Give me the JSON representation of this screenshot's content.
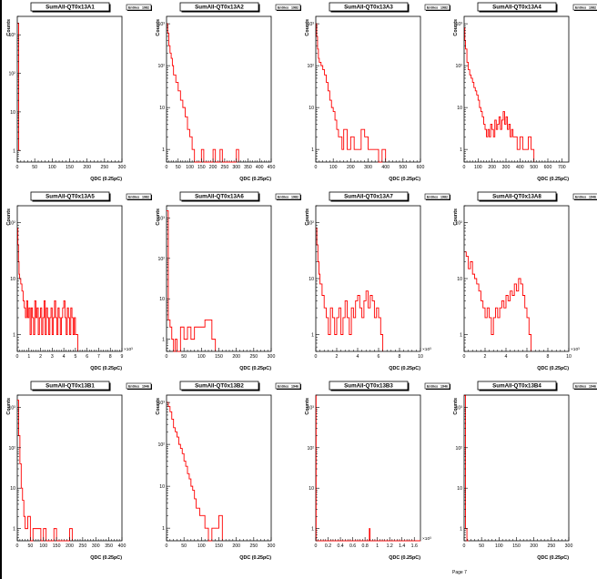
{
  "page": {
    "label": "Page 7"
  },
  "colors": {
    "series": "#ff0000",
    "axis": "#000000",
    "background": "#ffffff"
  },
  "chart_data": [
    {
      "type": "line",
      "title": "SumAll-QT0x13A1",
      "entries": "1982",
      "xlabel": "QDC (0.25pC)",
      "ylabel": "Counts",
      "log_y": true,
      "xlim": [
        0,
        300
      ],
      "ylim": [
        0.5,
        3000
      ],
      "xticks": [
        "0",
        "50",
        "100",
        "150",
        "200",
        "250",
        "300"
      ],
      "xtick_values": [
        0,
        50,
        100,
        150,
        200,
        250,
        300
      ],
      "yticks": [
        "1",
        "10",
        "10²",
        "10³"
      ],
      "ytick_values": [
        1,
        10,
        100,
        1000
      ],
      "x": [
        0,
        4,
        4,
        8
      ],
      "y": [
        1982,
        1982,
        1,
        1
      ]
    },
    {
      "type": "line",
      "title": "SumAll-QT0x13A2",
      "entries": "1982",
      "xlabel": "QDC (0.25pC)",
      "ylabel": "Counts",
      "log_y": true,
      "xlim": [
        0,
        450
      ],
      "ylim": [
        0.5,
        1500
      ],
      "xticks": [
        "0",
        "50",
        "100",
        "150",
        "200",
        "250",
        "300",
        "350",
        "400",
        "450"
      ],
      "xtick_values": [
        0,
        50,
        100,
        150,
        200,
        250,
        300,
        350,
        400,
        450
      ],
      "yticks": [
        "1",
        "10",
        "10²",
        "10³"
      ],
      "ytick_values": [
        1,
        10,
        100,
        1000
      ],
      "x": [
        0,
        5,
        10,
        15,
        20,
        25,
        30,
        40,
        50,
        60,
        70,
        80,
        90,
        100,
        110,
        120,
        150,
        160,
        200,
        210,
        230,
        240,
        300,
        310
      ],
      "y": [
        1000,
        600,
        300,
        200,
        150,
        100,
        60,
        40,
        25,
        15,
        10,
        6,
        3,
        2,
        1,
        0.5,
        1,
        0.5,
        1,
        0.5,
        1,
        0.5,
        1,
        0.5
      ]
    },
    {
      "type": "line",
      "title": "SumAll-QT0x13A3",
      "entries": "1982",
      "xlabel": "QDC (0.25pC)",
      "ylabel": "Counts",
      "log_y": true,
      "xlim": [
        0,
        600
      ],
      "ylim": [
        0.5,
        1500
      ],
      "xticks": [
        "0",
        "100",
        "200",
        "300",
        "400",
        "500",
        "600"
      ],
      "xtick_values": [
        0,
        100,
        200,
        300,
        400,
        500,
        600
      ],
      "yticks": [
        "1",
        "10",
        "10²",
        "10³"
      ],
      "ytick_values": [
        1,
        10,
        100,
        1000
      ],
      "x": [
        0,
        5,
        10,
        15,
        20,
        30,
        40,
        50,
        60,
        70,
        80,
        90,
        100,
        110,
        120,
        130,
        140,
        150,
        160,
        180,
        200,
        220,
        240,
        260,
        280,
        300,
        320,
        340,
        360,
        380,
        400
      ],
      "y": [
        1000,
        500,
        250,
        150,
        120,
        100,
        80,
        60,
        40,
        25,
        15,
        10,
        8,
        5,
        3,
        2,
        2,
        1,
        3,
        1,
        2,
        1,
        1,
        3,
        2,
        1,
        1,
        1,
        0.5,
        1,
        0.5
      ]
    },
    {
      "type": "line",
      "title": "SumAll-QT0x13A4",
      "entries": "1982",
      "xlabel": "QDC (0.25pC)",
      "ylabel": "Counts",
      "log_y": true,
      "xlim": [
        0,
        750
      ],
      "ylim": [
        0.5,
        1500
      ],
      "xticks": [
        "0",
        "100",
        "200",
        "300",
        "400",
        "500",
        "600",
        "700"
      ],
      "xtick_values": [
        0,
        100,
        200,
        300,
        400,
        500,
        600,
        700
      ],
      "yticks": [
        "1",
        "10",
        "10²",
        "10³"
      ],
      "ytick_values": [
        1,
        10,
        100,
        1000
      ],
      "x": [
        0,
        5,
        10,
        20,
        30,
        40,
        50,
        60,
        70,
        80,
        90,
        100,
        110,
        120,
        130,
        140,
        150,
        160,
        170,
        180,
        190,
        200,
        210,
        220,
        230,
        240,
        250,
        260,
        270,
        280,
        290,
        300,
        310,
        320,
        330,
        340,
        350,
        360,
        380,
        400,
        420,
        440,
        460,
        480,
        500
      ],
      "y": [
        800,
        400,
        250,
        120,
        80,
        60,
        50,
        40,
        30,
        25,
        20,
        15,
        10,
        8,
        6,
        4,
        3,
        2,
        3,
        2,
        4,
        3,
        2,
        5,
        3,
        4,
        6,
        3,
        5,
        8,
        4,
        6,
        3,
        4,
        2,
        3,
        2,
        2,
        1,
        2,
        1,
        1,
        2,
        1,
        0.5
      ]
    },
    {
      "type": "line",
      "title": "SumAll-QT0x13A5",
      "entries": "1982",
      "xlabel": "QDC (0.25pC)",
      "ylabel": "Counts",
      "log_y": true,
      "xlim": [
        0,
        9
      ],
      "ylim": [
        0.5,
        200
      ],
      "x_multiplier": "×10³",
      "xticks": [
        "0",
        "1",
        "2",
        "3",
        "4",
        "5",
        "6",
        "7",
        "8",
        "9"
      ],
      "xtick_values": [
        0,
        1,
        2,
        3,
        4,
        5,
        6,
        7,
        8,
        9
      ],
      "yticks": [
        "1",
        "10",
        "10²"
      ],
      "ytick_values": [
        1,
        10,
        100
      ],
      "x": [
        0,
        0.05,
        0.1,
        0.15,
        0.2,
        0.3,
        0.4,
        0.5,
        0.6,
        0.7,
        0.8,
        0.9,
        1.0,
        1.1,
        1.2,
        1.3,
        1.4,
        1.5,
        1.6,
        1.7,
        1.8,
        1.9,
        2.0,
        2.1,
        2.2,
        2.3,
        2.4,
        2.5,
        2.6,
        2.7,
        2.8,
        2.9,
        3.0,
        3.1,
        3.2,
        3.3,
        3.4,
        3.5,
        3.6,
        3.7,
        3.8,
        3.9,
        4.0,
        4.1,
        4.2,
        4.3,
        4.4,
        4.5,
        4.6,
        4.7,
        4.8,
        4.9,
        5.0,
        5.2
      ],
      "y": [
        80,
        40,
        20,
        12,
        10,
        8,
        6,
        4,
        3,
        2,
        4,
        2,
        3,
        1,
        3,
        2,
        1,
        4,
        2,
        3,
        1,
        2,
        3,
        1,
        2,
        4,
        1,
        3,
        2,
        1,
        2,
        3,
        1,
        2,
        4,
        2,
        1,
        3,
        2,
        1,
        2,
        3,
        4,
        2,
        1,
        3,
        2,
        1,
        3,
        2,
        1,
        2,
        1,
        0.5
      ]
    },
    {
      "type": "line",
      "title": "SumAll-QT0x13A6",
      "entries": "1982",
      "xlabel": "QDC (0.25pC)",
      "ylabel": "Counts",
      "log_y": true,
      "xlim": [
        0,
        300
      ],
      "ylim": [
        0.5,
        2000
      ],
      "xticks": [
        "0",
        "50",
        "100",
        "150",
        "200",
        "250",
        "300"
      ],
      "xtick_values": [
        0,
        50,
        100,
        150,
        200,
        250,
        300
      ],
      "yticks": [
        "1",
        "10",
        "10²",
        "10³"
      ],
      "ytick_values": [
        1,
        10,
        100,
        1000
      ],
      "x": [
        0,
        5,
        10,
        15,
        20,
        25,
        30,
        40,
        50,
        60,
        70,
        80,
        90,
        100,
        110,
        120,
        130,
        140
      ],
      "y": [
        1500,
        3,
        2,
        1,
        0.5,
        1,
        0.5,
        2,
        1,
        2,
        1,
        2,
        2,
        2,
        3,
        3,
        1,
        0.5
      ]
    },
    {
      "type": "line",
      "title": "SumAll-QT0x13A7",
      "entries": "1982",
      "xlabel": "QDC (0.25pC)",
      "ylabel": "Counts",
      "log_y": true,
      "xlim": [
        0,
        10
      ],
      "ylim": [
        0.5,
        200
      ],
      "x_multiplier": "×10³",
      "xticks": [
        "0",
        "2",
        "4",
        "6",
        "8",
        "10"
      ],
      "xtick_values": [
        0,
        2,
        4,
        6,
        8,
        10
      ],
      "yticks": [
        "1",
        "10",
        "10²"
      ],
      "ytick_values": [
        1,
        10,
        100
      ],
      "x": [
        0,
        0.1,
        0.2,
        0.3,
        0.4,
        0.6,
        0.8,
        1.0,
        1.2,
        1.4,
        1.6,
        1.8,
        2.0,
        2.2,
        2.4,
        2.6,
        2.8,
        3.0,
        3.2,
        3.4,
        3.6,
        3.8,
        4.0,
        4.2,
        4.4,
        4.6,
        4.8,
        5.0,
        5.2,
        5.4,
        5.6,
        5.8,
        6.0,
        6.2,
        6.4
      ],
      "y": [
        80,
        40,
        20,
        12,
        8,
        5,
        3,
        2,
        1,
        3,
        2,
        1,
        2,
        3,
        1,
        2,
        4,
        2,
        1,
        3,
        2,
        4,
        5,
        3,
        2,
        4,
        6,
        3,
        5,
        4,
        2,
        3,
        2,
        1,
        0.5
      ]
    },
    {
      "type": "line",
      "title": "SumAll-QT0x13A8",
      "entries": "1946",
      "xlabel": "QDC (0.25pC)",
      "ylabel": "Counts",
      "log_y": true,
      "xlim": [
        0,
        10
      ],
      "ylim": [
        0.5,
        200
      ],
      "x_multiplier": "×10³",
      "xticks": [
        "0",
        "2",
        "4",
        "6",
        "8",
        "10"
      ],
      "xtick_values": [
        0,
        2,
        4,
        6,
        8,
        10
      ],
      "yticks": [
        "1",
        "10",
        "10²"
      ],
      "ytick_values": [
        1,
        10,
        100
      ],
      "x": [
        0,
        0.2,
        0.4,
        0.6,
        0.8,
        1.0,
        1.2,
        1.4,
        1.6,
        1.8,
        2.0,
        2.2,
        2.4,
        2.6,
        2.8,
        3.0,
        3.2,
        3.4,
        3.6,
        3.8,
        4.0,
        4.2,
        4.4,
        4.6,
        4.8,
        5.0,
        5.2,
        5.4,
        5.6,
        5.8,
        6.0,
        6.2,
        6.4
      ],
      "y": [
        30,
        25,
        15,
        20,
        12,
        10,
        8,
        6,
        4,
        3,
        2,
        3,
        2,
        1,
        2,
        3,
        2,
        3,
        4,
        3,
        5,
        4,
        6,
        5,
        8,
        6,
        10,
        8,
        5,
        3,
        2,
        1,
        0.5
      ]
    },
    {
      "type": "line",
      "title": "SumAll-QT0x13B1",
      "entries": "1946",
      "xlabel": "QDC (0.25pC)",
      "ylabel": "Counts",
      "log_y": true,
      "xlim": [
        0,
        400
      ],
      "ylim": [
        0.5,
        2000
      ],
      "xticks": [
        "0",
        "50",
        "100",
        "150",
        "200",
        "250",
        "300",
        "350",
        "400"
      ],
      "xtick_values": [
        0,
        50,
        100,
        150,
        200,
        250,
        300,
        350,
        400
      ],
      "yticks": [
        "1",
        "10",
        "10²",
        "10³"
      ],
      "ytick_values": [
        1,
        10,
        100,
        1000
      ],
      "x": [
        0,
        5,
        10,
        15,
        20,
        25,
        30,
        40,
        50,
        60,
        80,
        90,
        100,
        110,
        140,
        150,
        200,
        210
      ],
      "y": [
        1500,
        200,
        40,
        10,
        5,
        2,
        1,
        2,
        0.5,
        1,
        1,
        0.5,
        1,
        0.5,
        1,
        0.5,
        1,
        0.5
      ]
    },
    {
      "type": "line",
      "title": "SumAll-QT0x13B2",
      "entries": "1946",
      "xlabel": "QDC (0.25pC)",
      "ylabel": "Counts",
      "log_y": true,
      "xlim": [
        0,
        300
      ],
      "ylim": [
        0.5,
        1500
      ],
      "xticks": [
        "0",
        "50",
        "100",
        "150",
        "200",
        "250",
        "300"
      ],
      "xtick_values": [
        0,
        50,
        100,
        150,
        200,
        250,
        300
      ],
      "yticks": [
        "1",
        "10",
        "10²",
        "10³"
      ],
      "ytick_values": [
        1,
        10,
        100,
        1000
      ],
      "x": [
        0,
        5,
        10,
        15,
        20,
        25,
        30,
        35,
        40,
        45,
        50,
        55,
        60,
        65,
        70,
        75,
        80,
        85,
        90,
        95,
        100,
        110,
        120,
        130,
        140,
        150,
        160
      ],
      "y": [
        1000,
        800,
        600,
        400,
        250,
        200,
        150,
        100,
        80,
        60,
        40,
        30,
        20,
        15,
        10,
        8,
        5,
        3,
        3,
        2,
        2,
        1,
        0.5,
        1,
        1,
        2,
        0.5
      ]
    },
    {
      "type": "line",
      "title": "SumAll-QT0x13B3",
      "entries": "1946",
      "xlabel": "QDC (0.25pC)",
      "ylabel": "Counts",
      "log_y": true,
      "xlim": [
        0,
        1.7
      ],
      "ylim": [
        0.5,
        2000
      ],
      "x_multiplier": "×10³",
      "xticks": [
        "0",
        "0.2",
        "0.4",
        "0.6",
        "0.8",
        "1",
        "1.2",
        "1.4",
        "1.6"
      ],
      "xtick_values": [
        0,
        0.2,
        0.4,
        0.6,
        0.8,
        1,
        1.2,
        1.4,
        1.6
      ],
      "yticks": [
        "1",
        "10",
        "10²",
        "10³"
      ],
      "ytick_values": [
        1,
        10,
        100,
        1000
      ],
      "x": [
        0,
        0.005,
        0.005,
        0.87,
        0.87,
        0.88,
        0.88,
        1.7
      ],
      "y": [
        1944,
        1944,
        0.5,
        0.5,
        1,
        1,
        0.5,
        0.5
      ]
    },
    {
      "type": "line",
      "title": "SumAll-QT0x13B4",
      "entries": "1946",
      "xlabel": "QDC (0.25pC)",
      "ylabel": "Counts",
      "log_y": true,
      "xlim": [
        0,
        300
      ],
      "ylim": [
        0.5,
        2000
      ],
      "xticks": [
        "0",
        "50",
        "100",
        "150",
        "200",
        "250",
        "300"
      ],
      "xtick_values": [
        0,
        50,
        100,
        150,
        200,
        250,
        300
      ],
      "yticks": [
        "1",
        "10",
        "10²",
        "10³"
      ],
      "ytick_values": [
        1,
        10,
        100,
        1000
      ],
      "x": [
        0,
        4,
        4,
        8,
        8,
        12
      ],
      "y": [
        1944,
        1944,
        1,
        1,
        0.5,
        0.5
      ]
    }
  ]
}
